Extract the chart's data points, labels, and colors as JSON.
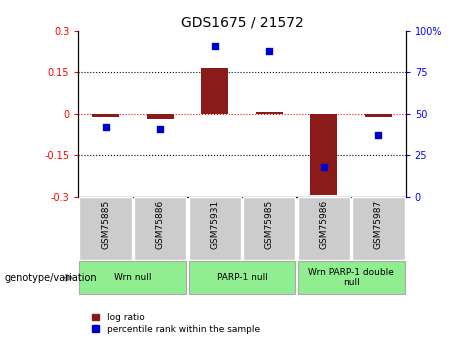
{
  "title": "GDS1675 / 21572",
  "samples": [
    "GSM75885",
    "GSM75886",
    "GSM75931",
    "GSM75985",
    "GSM75986",
    "GSM75987"
  ],
  "log_ratios": [
    -0.01,
    -0.02,
    0.165,
    0.005,
    -0.295,
    -0.01
  ],
  "percentile_ranks": [
    42,
    41,
    91,
    88,
    18,
    37
  ],
  "ylim_left": [
    -0.3,
    0.3
  ],
  "ylim_right": [
    0,
    100
  ],
  "yticks_left": [
    -0.3,
    -0.15,
    0,
    0.15,
    0.3
  ],
  "yticks_right": [
    0,
    25,
    50,
    75,
    100
  ],
  "ytick_labels_left": [
    "-0.3",
    "-0.15",
    "0",
    "0.15",
    "0.3"
  ],
  "ytick_labels_right": [
    "0",
    "25",
    "50",
    "75",
    "100%"
  ],
  "bar_color": "#8B1A1A",
  "dot_color": "#0000CC",
  "groups": [
    {
      "label": "Wrn null",
      "start": 0,
      "end": 1,
      "color": "#90EE90"
    },
    {
      "label": "PARP-1 null",
      "start": 2,
      "end": 3,
      "color": "#90EE90"
    },
    {
      "label": "Wrn PARP-1 double\nnull",
      "start": 4,
      "end": 5,
      "color": "#90EE90"
    }
  ],
  "legend_bar_label": "log ratio",
  "legend_dot_label": "percentile rank within the sample",
  "genotype_label": "genotype/variation",
  "background_color": "#ffffff",
  "plot_bg_color": "#ffffff",
  "sample_box_color": "#cccccc"
}
